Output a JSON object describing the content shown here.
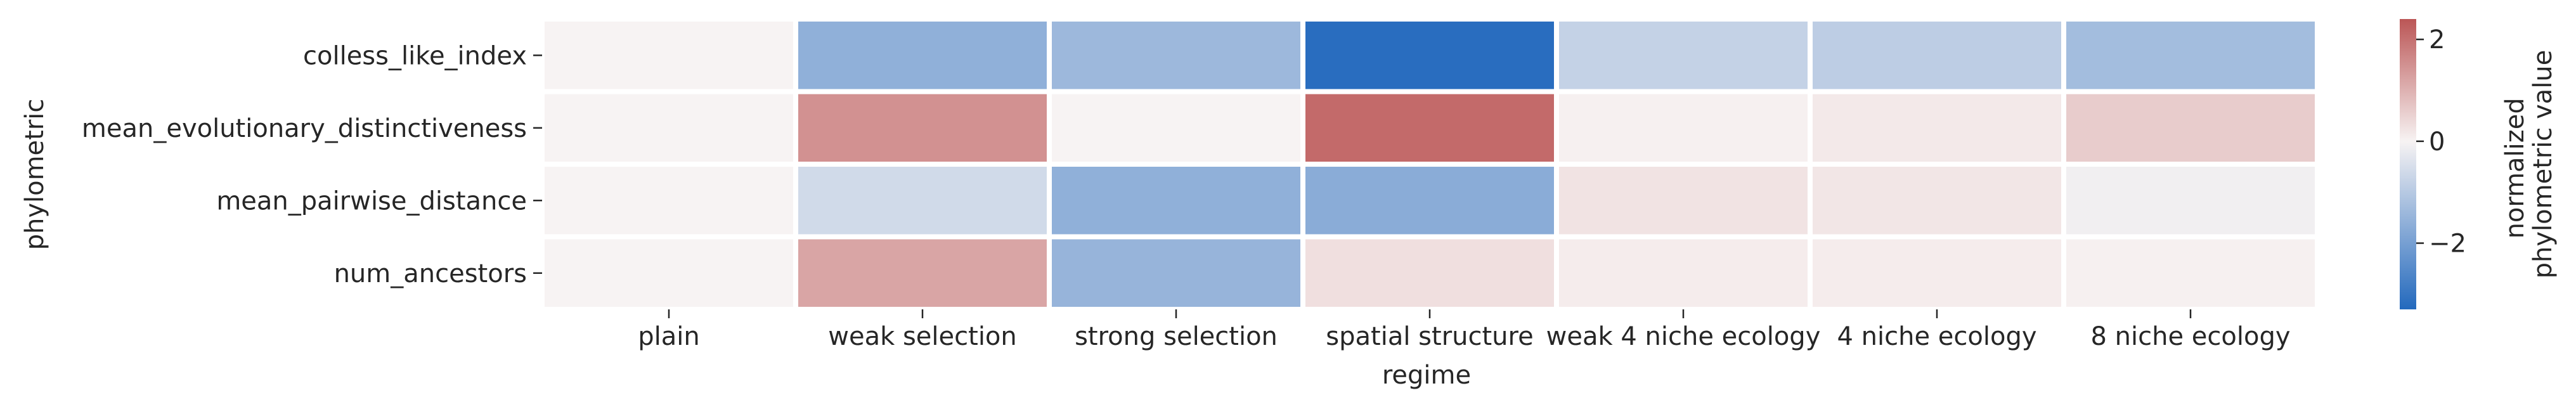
{
  "chart_data": {
    "type": "heatmap",
    "title": "",
    "xlabel": "regime",
    "ylabel": "phylometric",
    "x_categories": [
      "plain",
      "weak selection",
      "strong selection",
      "spatial structure",
      "weak 4 niche ecology",
      "4 niche ecology",
      "8 niche ecology"
    ],
    "y_categories": [
      "colless_like_index",
      "mean_evolutionary_distinctiveness",
      "mean_pairwise_distance",
      "num_ancestors"
    ],
    "values": [
      [
        0.0,
        -1.6,
        -1.4,
        -3.2,
        -0.8,
        -0.9,
        -1.3
      ],
      [
        0.0,
        1.5,
        0.0,
        2.1,
        0.05,
        0.15,
        0.6
      ],
      [
        0.0,
        -0.6,
        -1.6,
        -1.7,
        0.25,
        0.2,
        -0.1
      ],
      [
        0.0,
        1.2,
        -1.5,
        0.3,
        0.1,
        0.1,
        0.05
      ]
    ],
    "colorbar": {
      "label_lines": [
        "normalized",
        "phylometric value"
      ],
      "ticks": [
        2,
        0,
        -2
      ],
      "tick_labels": [
        "2",
        "0",
        "−2"
      ],
      "range": [
        -3.3,
        2.4
      ],
      "colors": {
        "low": "#2369bd",
        "mid": "#f7f3f3",
        "high": "#bb5656"
      }
    },
    "grid": false,
    "cell_gap_color": "#ffffff"
  }
}
